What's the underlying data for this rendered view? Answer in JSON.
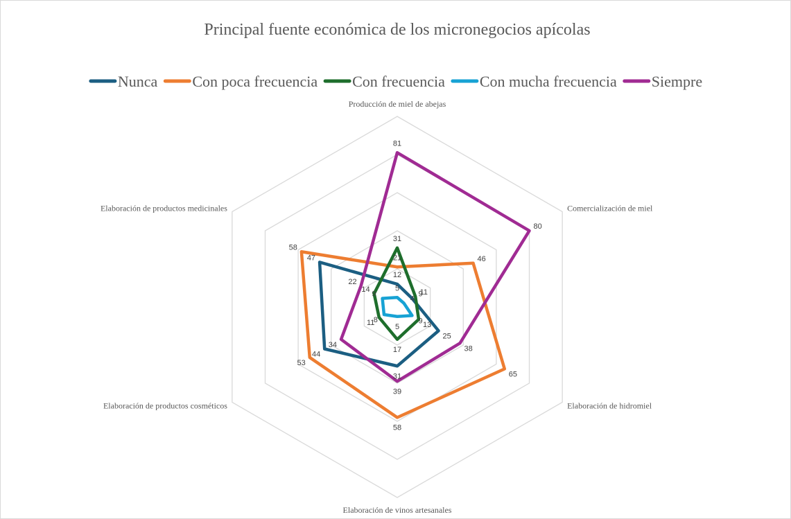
{
  "chart_data": {
    "type": "radar",
    "title": "Principal fuente económica de los micronegocios apícolas",
    "categories": [
      "Producción de miel de abejas",
      "Comercialización de miel",
      "Elaboración de hidromiel",
      "Elaboración de vinos artesanales",
      "Elaboración de productos cosméticos",
      "Elaboración de productos medicinales"
    ],
    "series": [
      {
        "name": "Nunca",
        "color": "#1b5e82",
        "values": [
          12,
          9,
          25,
          31,
          44,
          47
        ]
      },
      {
        "name": "Con poca frecuencia",
        "color": "#ed7d31",
        "values": [
          21,
          46,
          65,
          58,
          53,
          58
        ]
      },
      {
        "name": "Con frecuencia",
        "color": "#1e6e2c",
        "values": [
          31,
          11,
          13,
          17,
          11,
          14
        ]
      },
      {
        "name": "Con mucha frecuencia",
        "color": "#17a2d4",
        "values": [
          5,
          4,
          9,
          5,
          8,
          9
        ]
      },
      {
        "name": "Siempre",
        "color": "#a02b93",
        "values": [
          81,
          80,
          38,
          39,
          34,
          22
        ]
      }
    ],
    "ylim": [
      0,
      100
    ],
    "yticks": [
      0,
      20,
      40,
      60,
      80,
      100
    ],
    "legend": "top",
    "grid": true
  }
}
